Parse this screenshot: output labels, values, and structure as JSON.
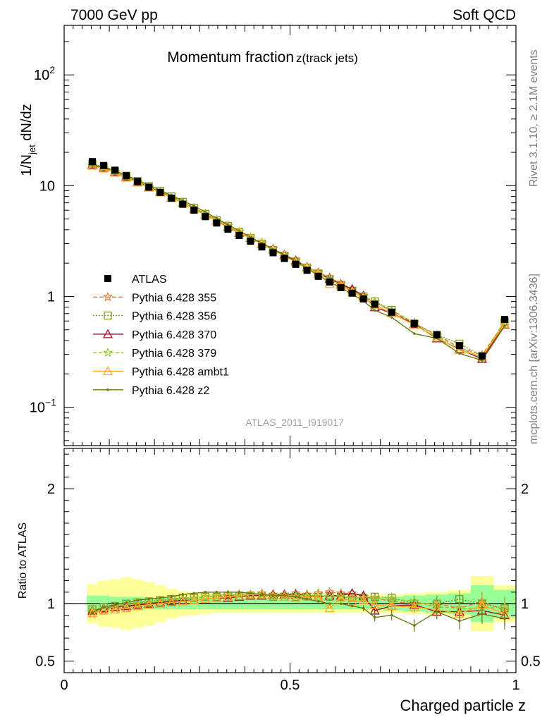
{
  "header": {
    "left": "7000 GeV pp",
    "right": "Soft QCD",
    "side_top": "Rivet 3.1.10, ≥ 2.1M events",
    "side_bottom": "mcplots.cern.ch [arXiv:1306.3436]"
  },
  "chart_data": {
    "type": "line",
    "title": "Momentum fraction",
    "title_sub": "z(track jets)",
    "analysis_id": "ATLAS_2011_I919017",
    "xlabel": "Charged particle z",
    "ylabel_main": "1/N",
    "ylabel_sub": "jet",
    "ylabel_rest": " dN/dz",
    "ratio_ylabel": "Ratio to ATLAS",
    "xlim": [
      0,
      1
    ],
    "ylim_main": [
      0.045,
      280
    ],
    "yscale_main": "log",
    "ylim_ratio": [
      0.4,
      2.35
    ],
    "x_ticks": [
      {
        "v": 0,
        "t": "0"
      },
      {
        "v": 0.5,
        "t": "0.5"
      },
      {
        "v": 1,
        "t": "1"
      }
    ],
    "y_ticks_main": [
      {
        "v": 100,
        "t": "10",
        "sup": "2"
      },
      {
        "v": 10,
        "t": "10",
        "sup": ""
      },
      {
        "v": 1,
        "t": "1",
        "sup": ""
      },
      {
        "v": 0.1,
        "t": "10",
        "sup": "−1"
      }
    ],
    "y_ticks_ratio": [
      {
        "v": 2,
        "t": "2"
      },
      {
        "v": 1,
        "t": "1"
      },
      {
        "v": 0.5,
        "t": "0.5"
      }
    ],
    "legend_position": "middle-left",
    "x": [
      0.0625,
      0.0875,
      0.1125,
      0.1375,
      0.1625,
      0.1875,
      0.2125,
      0.2375,
      0.2625,
      0.2875,
      0.3125,
      0.3375,
      0.3625,
      0.3875,
      0.4125,
      0.4375,
      0.4625,
      0.4875,
      0.5125,
      0.5375,
      0.5625,
      0.5875,
      0.6125,
      0.6375,
      0.6625,
      0.6875,
      0.725,
      0.775,
      0.825,
      0.875,
      0.925,
      0.975
    ],
    "data": {
      "name": "ATLAS",
      "values": [
        16.5,
        15.2,
        13.8,
        12.3,
        10.9,
        9.7,
        8.7,
        7.7,
        6.8,
        6.0,
        5.25,
        4.6,
        4.05,
        3.55,
        3.15,
        2.8,
        2.48,
        2.2,
        1.95,
        1.72,
        1.52,
        1.35,
        1.2,
        1.07,
        0.95,
        0.85,
        0.72,
        0.57,
        0.45,
        0.36,
        0.29,
        0.62
      ],
      "band_inner": [
        0.07,
        0.07,
        0.06,
        0.06,
        0.06,
        0.05,
        0.05,
        0.05,
        0.05,
        0.05,
        0.05,
        0.05,
        0.05,
        0.05,
        0.05,
        0.05,
        0.05,
        0.05,
        0.05,
        0.05,
        0.05,
        0.05,
        0.05,
        0.05,
        0.05,
        0.05,
        0.06,
        0.07,
        0.08,
        0.09,
        0.16,
        0.12
      ],
      "band_outer": [
        0.17,
        0.2,
        0.21,
        0.23,
        0.21,
        0.19,
        0.16,
        0.13,
        0.11,
        0.1,
        0.09,
        0.08,
        0.08,
        0.08,
        0.08,
        0.08,
        0.08,
        0.08,
        0.08,
        0.08,
        0.08,
        0.08,
        0.08,
        0.08,
        0.08,
        0.08,
        0.08,
        0.09,
        0.1,
        0.12,
        0.24,
        0.16
      ]
    },
    "series": [
      {
        "name": "Pythia 6.428 355",
        "color": "#ff7020",
        "dash": "6,3",
        "marker": "star",
        "ratio": [
          0.91,
          0.94,
          0.96,
          0.97,
          0.99,
          1.0,
          1.02,
          1.03,
          1.04,
          1.05,
          1.06,
          1.07,
          1.07,
          1.08,
          1.08,
          1.09,
          1.08,
          1.08,
          1.09,
          1.08,
          1.09,
          1.1,
          1.09,
          1.09,
          1.06,
          1.05,
          1.02,
          1.0,
          1.0,
          0.96,
          1.02,
          0.94
        ]
      },
      {
        "name": "Pythia 6.428 356",
        "color": "#7a9a1e",
        "dash": "2,2",
        "marker": "square",
        "ratio": [
          0.95,
          0.97,
          0.98,
          1.0,
          1.01,
          1.02,
          1.03,
          1.04,
          1.05,
          1.05,
          1.06,
          1.06,
          1.07,
          1.07,
          1.07,
          1.07,
          1.06,
          1.06,
          1.06,
          1.06,
          1.06,
          1.06,
          1.06,
          1.05,
          1.05,
          1.06,
          1.05,
          1.0,
          1.0,
          1.04,
          1.0,
          0.96
        ]
      },
      {
        "name": "Pythia 6.428 370",
        "color": "#a0102a",
        "dash": "",
        "marker": "triangle",
        "ratio": [
          0.94,
          0.96,
          0.97,
          0.98,
          0.99,
          1.0,
          1.01,
          1.02,
          1.03,
          1.03,
          1.04,
          1.05,
          1.05,
          1.06,
          1.07,
          1.07,
          1.08,
          1.08,
          1.08,
          1.07,
          1.06,
          1.07,
          1.07,
          1.09,
          1.07,
          0.94,
          0.98,
          0.99,
          0.93,
          0.93,
          0.94,
          0.9
        ]
      },
      {
        "name": "Pythia 6.428 379",
        "color": "#8cc83a",
        "dash": "5,3",
        "marker": "star",
        "ratio": [
          0.94,
          0.96,
          0.97,
          0.99,
          1.0,
          1.01,
          1.02,
          1.03,
          1.04,
          1.05,
          1.06,
          1.07,
          1.08,
          1.08,
          1.08,
          1.08,
          1.07,
          1.07,
          1.07,
          1.07,
          1.07,
          1.06,
          1.06,
          1.05,
          1.05,
          1.04,
          1.04,
          1.02,
          0.97,
          0.96,
          0.96,
          0.97
        ]
      },
      {
        "name": "Pythia 6.428 ambt1",
        "color": "#ffaa20",
        "dash": "",
        "marker": "triangle",
        "ratio": [
          0.92,
          0.94,
          0.95,
          0.96,
          0.98,
          0.99,
          1.0,
          1.01,
          1.02,
          1.03,
          1.04,
          1.05,
          1.06,
          1.07,
          1.08,
          1.08,
          1.07,
          1.06,
          1.05,
          1.06,
          1.06,
          0.96,
          1.05,
          1.02,
          1.03,
          0.99,
          0.98,
          0.97,
          0.95,
          0.91,
          0.99,
          0.91
        ]
      },
      {
        "name": "Pythia 6.428 z2",
        "color": "#707a10",
        "dash": "",
        "marker": "dot",
        "ratio": [
          0.92,
          0.97,
          0.99,
          1.01,
          1.03,
          1.04,
          1.05,
          1.06,
          1.08,
          1.09,
          1.1,
          1.1,
          1.1,
          1.1,
          1.09,
          1.08,
          1.07,
          1.07,
          1.06,
          1.04,
          1.02,
          1.0,
          1.0,
          0.98,
          0.96,
          0.88,
          0.9,
          0.81,
          0.93,
          0.85,
          0.91,
          0.87
        ]
      }
    ]
  }
}
